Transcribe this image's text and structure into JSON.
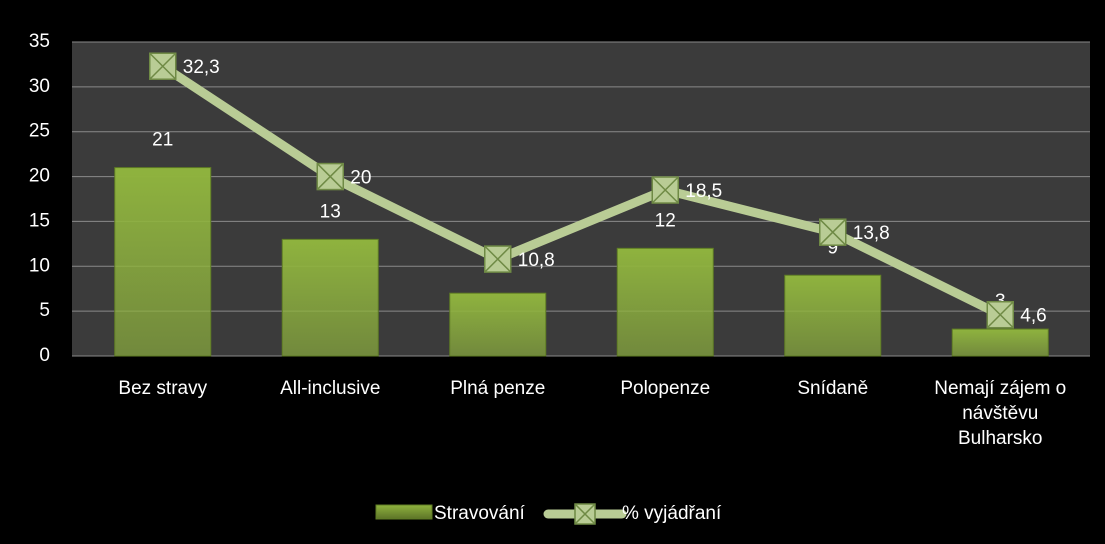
{
  "chart_data": {
    "type": "bar",
    "categories": [
      "Bez stravy",
      "All-inclusive",
      "Plná penze",
      "Polopenze",
      "Snídaně",
      "Nemají zájem o návštěvu Bulharsko"
    ],
    "series": [
      {
        "name": "Stravování",
        "type": "bar",
        "color": "#8fb33e",
        "values": [
          21,
          13,
          7,
          12,
          9,
          3
        ]
      },
      {
        "name": "% vyjádřaní",
        "type": "line",
        "color": "#b9cc95",
        "values": [
          32.3,
          20,
          10.8,
          18.5,
          13.8,
          4.6
        ],
        "value_labels": [
          "32,3",
          "20",
          "10,8",
          "18,5",
          "13,8",
          "4,6"
        ]
      }
    ],
    "ylim": [
      0,
      35
    ],
    "yticks": [
      0,
      5,
      10,
      15,
      20,
      25,
      30,
      35
    ],
    "grid": true
  }
}
